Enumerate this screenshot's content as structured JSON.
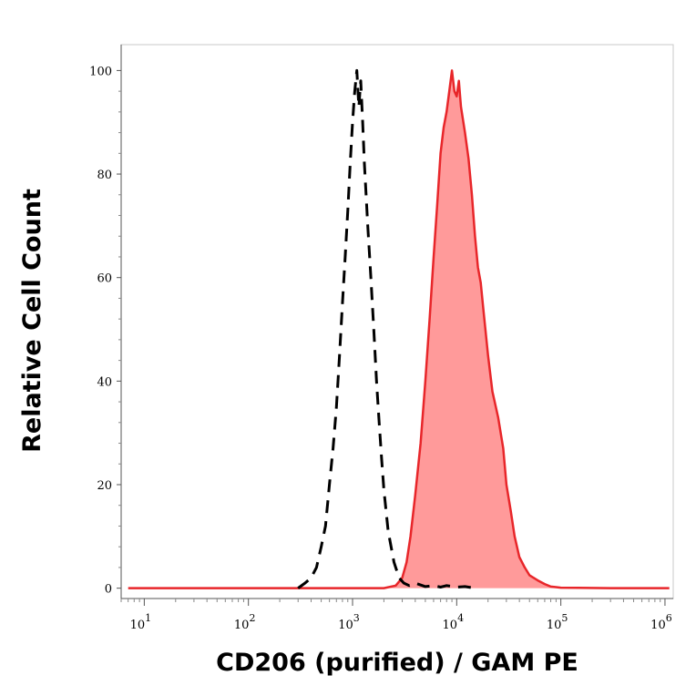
{
  "chart_data": {
    "type": "area",
    "title": "",
    "xlabel": "CD206 (purified) / GAM PE",
    "ylabel": "Relative Cell Count",
    "xscale": "log",
    "xlim": [
      6,
      1200000
    ],
    "ylim": [
      -2,
      105
    ],
    "grid": false,
    "y_ticks": [
      {
        "value": 0,
        "label": "0"
      },
      {
        "value": 20,
        "label": "20"
      },
      {
        "value": 40,
        "label": "40"
      },
      {
        "value": 60,
        "label": "60"
      },
      {
        "value": 80,
        "label": "80"
      },
      {
        "value": 100,
        "label": "100"
      }
    ],
    "x_ticks": [
      {
        "value": 10,
        "base": "10",
        "exp": "1"
      },
      {
        "value": 100,
        "base": "10",
        "exp": "2"
      },
      {
        "value": 1000,
        "base": "10",
        "exp": "3"
      },
      {
        "value": 10000,
        "base": "10",
        "exp": "4"
      },
      {
        "value": 100000,
        "base": "10",
        "exp": "5"
      },
      {
        "value": 1000000,
        "base": "10",
        "exp": "6"
      }
    ],
    "series": [
      {
        "style": "dashed",
        "color": "#000000",
        "fill": "none",
        "x": [
          300,
          350,
          400,
          450,
          500,
          550,
          600,
          650,
          700,
          750,
          800,
          850,
          900,
          950,
          1000,
          1050,
          1100,
          1150,
          1200,
          1250,
          1300,
          1400,
          1500,
          1600,
          1700,
          1800,
          1900,
          2000,
          2200,
          2500,
          2800,
          3100,
          3500,
          4000,
          5000,
          6000,
          7000,
          8000,
          10000,
          12000,
          15000
        ],
        "y": [
          0,
          1,
          2,
          4,
          8,
          12,
          20,
          27,
          35,
          45,
          55,
          64,
          73,
          82,
          90,
          96,
          100,
          93,
          98,
          90,
          82,
          70,
          60,
          50,
          40,
          32,
          25,
          19,
          11,
          5,
          2,
          1,
          0.5,
          1,
          0.3,
          0.5,
          0.2,
          0.5,
          0.2,
          0.3,
          0
        ]
      },
      {
        "style": "solid",
        "color": "#e8262a",
        "fill": "#ff9a9a",
        "x": [
          7,
          20,
          100,
          300,
          1000,
          2000,
          2600,
          3000,
          3300,
          3600,
          4000,
          4500,
          5000,
          5500,
          6000,
          6500,
          7000,
          7500,
          8000,
          8500,
          9000,
          9500,
          10000,
          10500,
          11000,
          12000,
          13000,
          14000,
          15000,
          16000,
          17000,
          18000,
          20000,
          22000,
          25000,
          28000,
          30000,
          33000,
          36000,
          40000,
          45000,
          50000,
          60000,
          70000,
          80000,
          90000,
          100000,
          300000,
          1000000,
          1100000
        ],
        "y": [
          0,
          0,
          0,
          0,
          0,
          0,
          0.5,
          2,
          5,
          10,
          18,
          28,
          40,
          52,
          64,
          74,
          84,
          89,
          92,
          96,
          100,
          96,
          95,
          98,
          93,
          88,
          83,
          76,
          68,
          62,
          59,
          54,
          45,
          38,
          33,
          27,
          20,
          15,
          10,
          6,
          4,
          2.5,
          1.5,
          0.8,
          0.3,
          0.2,
          0.1,
          0,
          0,
          0
        ]
      }
    ]
  }
}
